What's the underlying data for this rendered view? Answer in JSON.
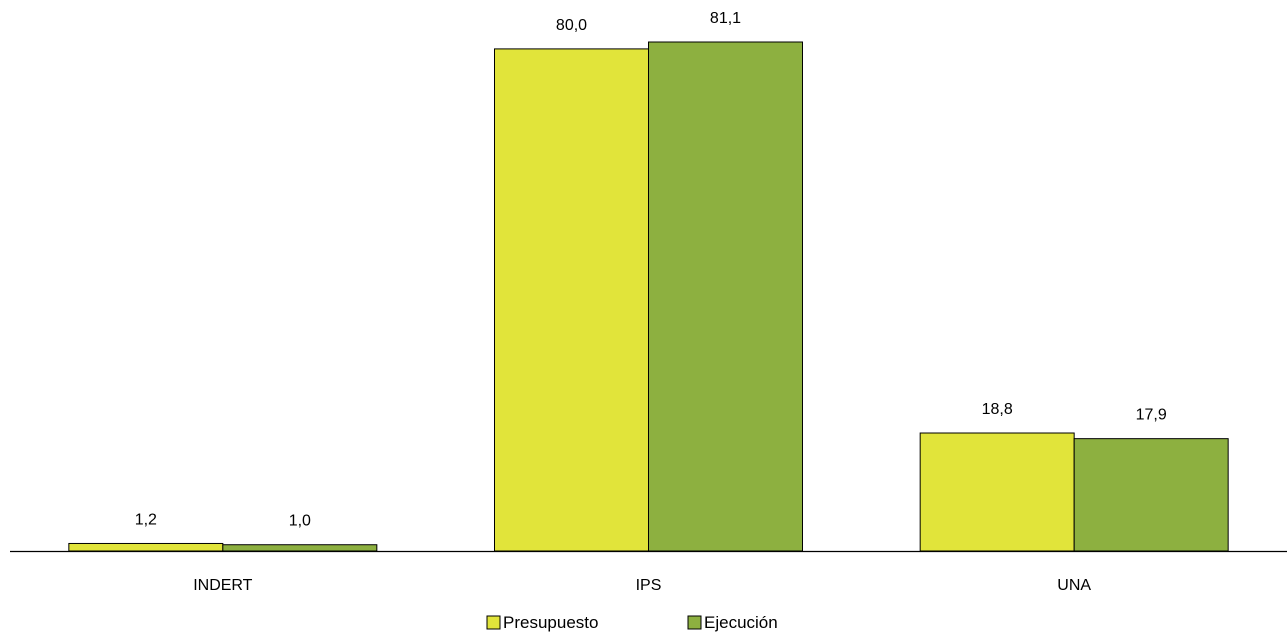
{
  "chart_data": {
    "type": "bar",
    "categories": [
      "INDERT",
      "IPS",
      "UNA"
    ],
    "series": [
      {
        "name": "Presupuesto",
        "values": [
          1.2,
          80.0,
          18.8
        ],
        "labels": [
          "1,2",
          "80,0",
          "18,8"
        ],
        "color": "#e1e43a"
      },
      {
        "name": "Ejecución",
        "values": [
          1.0,
          81.1,
          17.9
        ],
        "labels": [
          "1,0",
          "81,1",
          "17,9"
        ],
        "color": "#8db040"
      }
    ],
    "title": "",
    "xlabel": "",
    "ylabel": "",
    "ylim": [
      0,
      81.1
    ],
    "grid": false,
    "legend_position": "bottom-center"
  }
}
